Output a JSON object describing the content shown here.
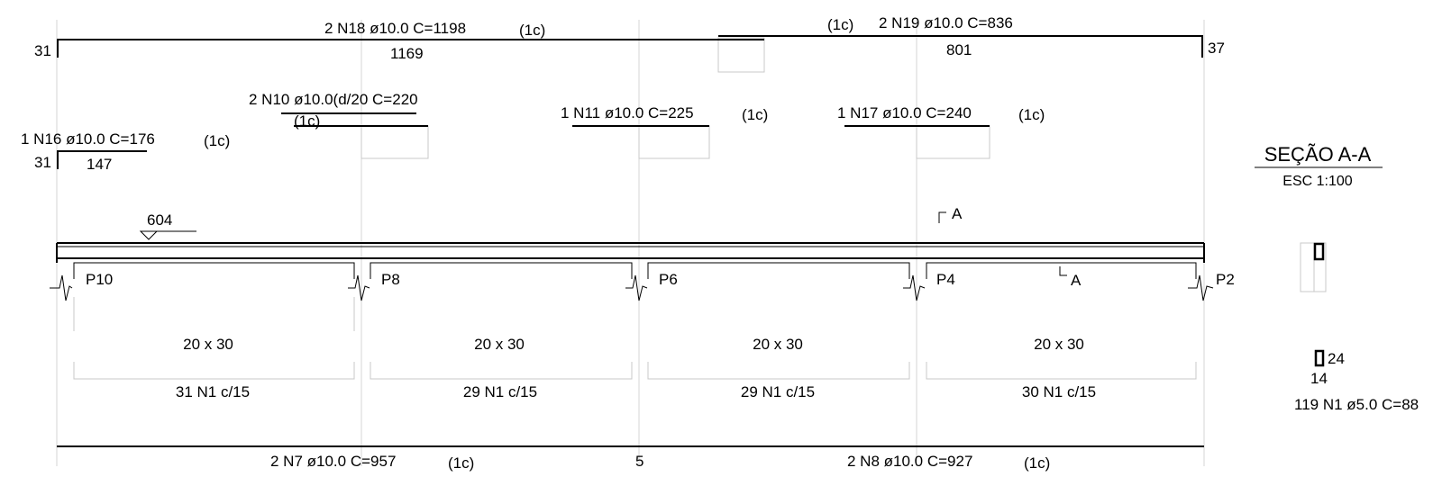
{
  "top_bars": {
    "n18": {
      "label": "2 N18 ø10.0  C=1198",
      "layer": "(1c)",
      "left_hook": "31",
      "length": "1169"
    },
    "n19": {
      "layer": "(1c)",
      "label": "2 N19 ø10.0  C=836",
      "length": "801",
      "right_hook": "37"
    },
    "n10": {
      "label": "2 N10 ø10.0(d/20  C=220",
      "layer": "(1c)"
    },
    "n11": {
      "label": "1 N11 ø10.0  C=225",
      "layer": "(1c)"
    },
    "n17": {
      "label": "1 N17 ø10.0  C=240",
      "layer": "(1c)"
    },
    "n16": {
      "label": "1 N16 ø10.0  C=176",
      "layer": "(1c)",
      "left_hook": "31",
      "length": "147"
    }
  },
  "beam": {
    "top_level": "604",
    "section_mark": "A",
    "supports": [
      "P10",
      "P8",
      "P6",
      "P4",
      "P2"
    ],
    "spans": [
      {
        "section": "20 x 30",
        "stirrups": "31 N1 c/15"
      },
      {
        "section": "20 x 30",
        "stirrups": "29 N1 c/15"
      },
      {
        "section": "20 x 30",
        "stirrups": "29 N1 c/15"
      },
      {
        "section": "20 x 30",
        "stirrups": "30 N1 c/15"
      }
    ]
  },
  "bottom_bars": {
    "n7": {
      "label": "2 N7 ø10.0  C=957",
      "layer": "(1c)"
    },
    "splice": "5",
    "n8": {
      "label": "2 N8 ø10.0  C=927",
      "layer": "(1c)"
    }
  },
  "section_detail": {
    "title": "SEÇÃO A-A",
    "scale": "ESC 1:100",
    "stirrup_height": "24",
    "stirrup_width": "14",
    "stirrup_label": "119 N1 ø5.0  C=88"
  }
}
